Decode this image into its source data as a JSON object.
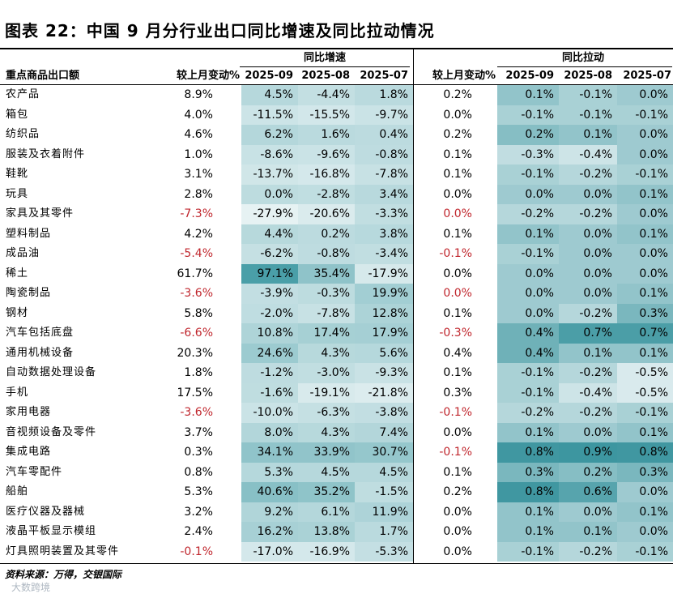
{
  "title": "图表 22：中国 9 月分行业出口同比增速及同比拉动情况",
  "groups": {
    "growth": "同比增速",
    "pull": "同比拉动"
  },
  "headers": {
    "name": "重点商品出口额",
    "growth_change": "较上月变动%",
    "growth_m1": "2025-09",
    "growth_m2": "2025-08",
    "growth_m3": "2025-07",
    "pull_change": "较上月变动%",
    "pull_m1": "2025-09",
    "pull_m2": "2025-08",
    "pull_m3": "2025-07"
  },
  "colors": {
    "negative_text": "#c0262d",
    "heat_growth_low": "#ffffff",
    "heat_growth_high": "#4a9fa8",
    "heat_pull_low": "#ffffff",
    "heat_pull_high": "#3d96a0"
  },
  "rows": [
    {
      "name": "农产品",
      "gc": "8.9%",
      "g1": "4.5%",
      "g2": "-4.4%",
      "g3": "1.8%",
      "pc": "0.2%",
      "p1": "0.1%",
      "p2": "-0.1%",
      "p3": "0.0%"
    },
    {
      "name": "箱包",
      "gc": "4.0%",
      "g1": "-11.5%",
      "g2": "-15.5%",
      "g3": "-9.7%",
      "pc": "0.0%",
      "p1": "-0.1%",
      "p2": "-0.1%",
      "p3": "-0.1%"
    },
    {
      "name": "纺织品",
      "gc": "4.6%",
      "g1": "6.2%",
      "g2": "1.6%",
      "g3": "0.4%",
      "pc": "0.2%",
      "p1": "0.2%",
      "p2": "0.1%",
      "p3": "0.0%"
    },
    {
      "name": "服装及衣着附件",
      "gc": "1.0%",
      "g1": "-8.6%",
      "g2": "-9.6%",
      "g3": "-0.8%",
      "pc": "0.1%",
      "p1": "-0.3%",
      "p2": "-0.4%",
      "p3": "0.0%"
    },
    {
      "name": "鞋靴",
      "gc": "3.1%",
      "g1": "-13.7%",
      "g2": "-16.8%",
      "g3": "-7.8%",
      "pc": "0.1%",
      "p1": "-0.1%",
      "p2": "-0.2%",
      "p3": "-0.1%"
    },
    {
      "name": "玩具",
      "gc": "2.8%",
      "g1": "0.0%",
      "g2": "-2.8%",
      "g3": "3.4%",
      "pc": "0.0%",
      "p1": "0.0%",
      "p2": "0.0%",
      "p3": "0.1%"
    },
    {
      "name": "家具及其零件",
      "gc": "-7.3%",
      "g1": "-27.9%",
      "g2": "-20.6%",
      "g3": "-3.3%",
      "pc": "0.0%",
      "p1": "-0.2%",
      "p2": "-0.2%",
      "p3": "0.0%"
    },
    {
      "name": "塑料制品",
      "gc": "4.2%",
      "g1": "4.4%",
      "g2": "0.2%",
      "g3": "3.8%",
      "pc": "0.1%",
      "p1": "0.1%",
      "p2": "0.0%",
      "p3": "0.1%"
    },
    {
      "name": "成品油",
      "gc": "-5.4%",
      "g1": "-6.2%",
      "g2": "-0.8%",
      "g3": "-3.4%",
      "pc": "-0.1%",
      "p1": "-0.1%",
      "p2": "0.0%",
      "p3": "0.0%"
    },
    {
      "name": "稀土",
      "gc": "61.7%",
      "g1": "97.1%",
      "g2": "35.4%",
      "g3": "-17.9%",
      "pc": "0.0%",
      "p1": "0.0%",
      "p2": "0.0%",
      "p3": "0.0%"
    },
    {
      "name": "陶瓷制品",
      "gc": "-3.6%",
      "g1": "-3.9%",
      "g2": "-0.3%",
      "g3": "19.9%",
      "pc": "0.0%",
      "p1": "0.0%",
      "p2": "0.0%",
      "p3": "0.1%"
    },
    {
      "name": "钢材",
      "gc": "5.8%",
      "g1": "-2.0%",
      "g2": "-7.8%",
      "g3": "12.8%",
      "pc": "0.1%",
      "p1": "0.0%",
      "p2": "-0.2%",
      "p3": "0.3%"
    },
    {
      "name": "汽车包括底盘",
      "gc": "-6.6%",
      "g1": "10.8%",
      "g2": "17.4%",
      "g3": "17.9%",
      "pc": "-0.3%",
      "p1": "0.4%",
      "p2": "0.7%",
      "p3": "0.7%"
    },
    {
      "name": "通用机械设备",
      "gc": "20.3%",
      "g1": "24.6%",
      "g2": "4.3%",
      "g3": "5.6%",
      "pc": "0.4%",
      "p1": "0.4%",
      "p2": "0.1%",
      "p3": "0.1%"
    },
    {
      "name": "自动数据处理设备",
      "gc": "1.8%",
      "g1": "-1.2%",
      "g2": "-3.0%",
      "g3": "-9.3%",
      "pc": "0.1%",
      "p1": "-0.1%",
      "p2": "-0.2%",
      "p3": "-0.5%"
    },
    {
      "name": "手机",
      "gc": "17.5%",
      "g1": "-1.6%",
      "g2": "-19.1%",
      "g3": "-21.8%",
      "pc": "0.3%",
      "p1": "-0.1%",
      "p2": "-0.4%",
      "p3": "-0.5%"
    },
    {
      "name": "家用电器",
      "gc": "-3.6%",
      "g1": "-10.0%",
      "g2": "-6.3%",
      "g3": "-3.8%",
      "pc": "-0.1%",
      "p1": "-0.2%",
      "p2": "-0.2%",
      "p3": "-0.1%"
    },
    {
      "name": "音视频设备及零件",
      "gc": "3.7%",
      "g1": "8.0%",
      "g2": "4.3%",
      "g3": "7.4%",
      "pc": "0.0%",
      "p1": "0.1%",
      "p2": "0.0%",
      "p3": "0.1%"
    },
    {
      "name": "集成电路",
      "gc": "0.3%",
      "g1": "34.1%",
      "g2": "33.9%",
      "g3": "30.7%",
      "pc": "-0.1%",
      "p1": "0.8%",
      "p2": "0.9%",
      "p3": "0.8%"
    },
    {
      "name": "汽车零配件",
      "gc": "0.8%",
      "g1": "5.3%",
      "g2": "4.5%",
      "g3": "4.5%",
      "pc": "0.1%",
      "p1": "0.3%",
      "p2": "0.2%",
      "p3": "0.3%"
    },
    {
      "name": "船舶",
      "gc": "5.3%",
      "g1": "40.6%",
      "g2": "35.2%",
      "g3": "-1.5%",
      "pc": "0.2%",
      "p1": "0.8%",
      "p2": "0.6%",
      "p3": "0.0%"
    },
    {
      "name": "医疗仪器及器械",
      "gc": "3.2%",
      "g1": "9.2%",
      "g2": "6.1%",
      "g3": "11.9%",
      "pc": "0.0%",
      "p1": "0.1%",
      "p2": "0.0%",
      "p3": "0.1%"
    },
    {
      "name": "液晶平板显示模组",
      "gc": "2.4%",
      "g1": "16.2%",
      "g2": "13.8%",
      "g3": "1.7%",
      "pc": "0.0%",
      "p1": "0.1%",
      "p2": "0.1%",
      "p3": "0.0%"
    },
    {
      "name": "灯具照明装置及其零件",
      "gc": "-0.1%",
      "g1": "-17.0%",
      "g2": "-16.9%",
      "g3": "-5.3%",
      "pc": "0.0%",
      "p1": "-0.1%",
      "p2": "-0.2%",
      "p3": "-0.1%"
    }
  ],
  "footnote": "资料来源：万得，交银国际",
  "watermark": "大数跨境"
}
